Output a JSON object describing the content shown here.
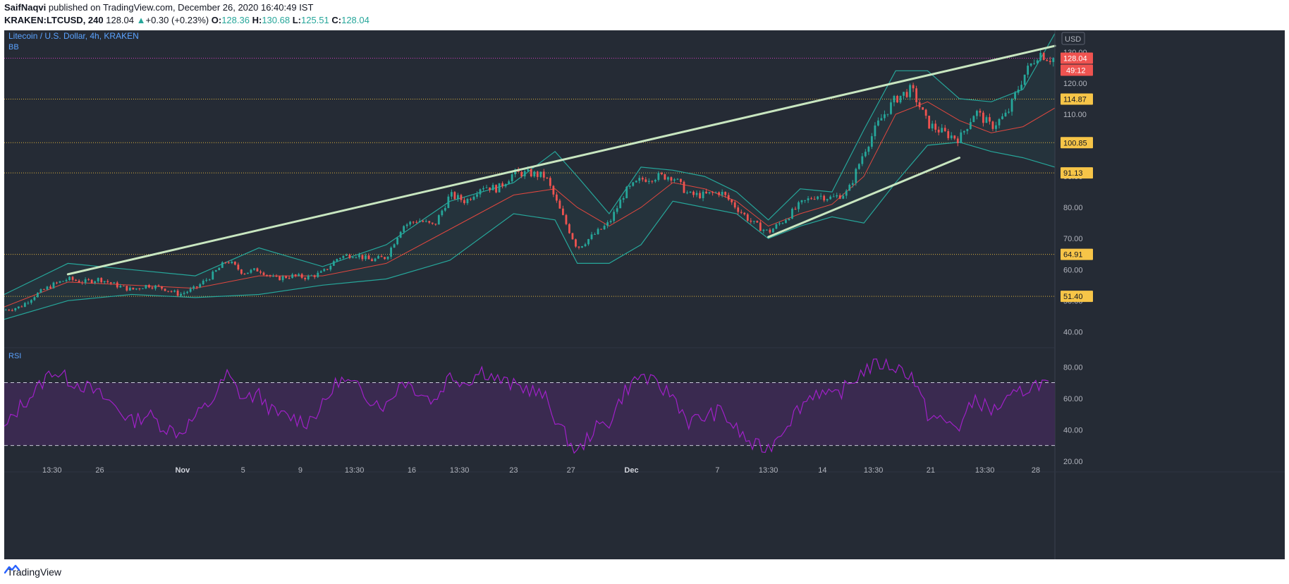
{
  "header": {
    "author": "SaifNaqvi",
    "published_text": " published on TradingView.com, December 26, 2020 16:40:49 IST",
    "symbol": "KRAKEN:LTCUSD, 240",
    "last": "128.04",
    "change_arrow": "▲",
    "change": "+0.30 (+0.23%)",
    "o_label": "O:",
    "o_value": "128.36",
    "h_label": "H:",
    "h_value": "130.68",
    "l_label": "L:",
    "l_value": "125.51",
    "c_label": "C:",
    "c_value": "128.04"
  },
  "pane": {
    "title": "Litecoin / U.S. Dollar, 4h, KRAKEN",
    "indicator": "BB",
    "currency": "USD",
    "rsi_label": "RSI",
    "countdown": "49:12"
  },
  "footer": {
    "brand": "TradingView",
    "brand_icon": "tradingview-logo-icon"
  },
  "colors": {
    "background": "#252b35",
    "up": "#26a69a",
    "down": "#ef5350",
    "bb_band": "#26a69a",
    "bb_basis": "#e0473f",
    "trendline": "#c8e6c0",
    "rsi_line": "#a020c8",
    "rsi_band_fill": "#3e2a55",
    "level_line": "#f0c040",
    "price_tag": "#ef5350",
    "level_tag": "#f7c548"
  },
  "chart_data": [
    {
      "type": "candlestick",
      "title": "Litecoin / U.S. Dollar, 4h, KRAKEN",
      "indicators": [
        "BB"
      ],
      "y_ticks": [
        "40.00",
        "50.00",
        "60.00",
        "70.00",
        "80.00",
        "90.00",
        "100.00",
        "110.00",
        "120.00",
        "130.00"
      ],
      "ylim": [
        36,
        137
      ],
      "x_ticks": [
        "13:30",
        "26",
        "Nov",
        "5",
        "9",
        "13:30",
        "16",
        "13:30",
        "23",
        "27",
        "Dec",
        "7",
        "13:30",
        "14",
        "13:30",
        "21",
        "13:30",
        "28"
      ],
      "horizontal_levels": [
        {
          "value": 128.04,
          "label": "128.04",
          "style": "price"
        },
        {
          "value": 114.87,
          "label": "114.87"
        },
        {
          "value": 100.85,
          "label": "100.85"
        },
        {
          "value": 91.13,
          "label": "91.13"
        },
        {
          "value": 64.91,
          "label": "64.91"
        },
        {
          "value": 51.4,
          "label": "51.40"
        }
      ],
      "trendlines": [
        {
          "from": [
            20,
            58.5
          ],
          "to": [
            330,
            132
          ]
        },
        {
          "from": [
            240,
            70.5
          ],
          "to": [
            300,
            96
          ]
        }
      ],
      "close_path": [
        [
          0,
          47
        ],
        [
          5,
          48
        ],
        [
          10,
          52
        ],
        [
          15,
          55
        ],
        [
          20,
          57
        ],
        [
          25,
          56
        ],
        [
          30,
          57
        ],
        [
          35,
          55
        ],
        [
          40,
          53.5
        ],
        [
          45,
          55
        ],
        [
          50,
          54
        ],
        [
          55,
          52
        ],
        [
          60,
          54
        ],
        [
          65,
          58
        ],
        [
          70,
          63
        ],
        [
          75,
          59
        ],
        [
          80,
          60
        ],
        [
          85,
          57
        ],
        [
          90,
          58
        ],
        [
          95,
          57.5
        ],
        [
          100,
          59
        ],
        [
          105,
          64
        ],
        [
          110,
          65
        ],
        [
          115,
          63
        ],
        [
          120,
          64
        ],
        [
          125,
          74
        ],
        [
          130,
          76
        ],
        [
          135,
          74
        ],
        [
          140,
          84
        ],
        [
          145,
          82
        ],
        [
          150,
          87
        ],
        [
          155,
          86
        ],
        [
          160,
          91
        ],
        [
          165,
          91
        ],
        [
          170,
          90
        ],
        [
          175,
          78
        ],
        [
          180,
          67
        ],
        [
          185,
          71
        ],
        [
          190,
          75
        ],
        [
          195,
          85
        ],
        [
          200,
          89
        ],
        [
          205,
          90
        ],
        [
          210,
          90
        ],
        [
          215,
          84
        ],
        [
          220,
          84
        ],
        [
          225,
          85
        ],
        [
          230,
          80
        ],
        [
          235,
          75
        ],
        [
          240,
          72
        ],
        [
          245,
          76
        ],
        [
          250,
          81
        ],
        [
          255,
          84
        ],
        [
          260,
          83
        ],
        [
          265,
          85
        ],
        [
          270,
          98
        ],
        [
          275,
          108
        ],
        [
          280,
          115
        ],
        [
          285,
          118
        ],
        [
          290,
          107
        ],
        [
          295,
          104
        ],
        [
          300,
          102
        ],
        [
          305,
          111
        ],
        [
          310,
          106
        ],
        [
          315,
          110
        ],
        [
          320,
          122
        ],
        [
          325,
          130
        ],
        [
          328,
          128
        ]
      ],
      "bb_upper": [
        [
          0,
          52
        ],
        [
          20,
          62
        ],
        [
          40,
          60
        ],
        [
          60,
          58
        ],
        [
          80,
          67
        ],
        [
          100,
          61
        ],
        [
          120,
          68
        ],
        [
          140,
          82
        ],
        [
          160,
          88
        ],
        [
          173,
          98
        ],
        [
          180,
          90
        ],
        [
          190,
          78
        ],
        [
          200,
          93
        ],
        [
          210,
          92
        ],
        [
          220,
          90
        ],
        [
          230,
          85
        ],
        [
          240,
          76
        ],
        [
          250,
          86
        ],
        [
          260,
          85
        ],
        [
          270,
          105
        ],
        [
          280,
          124
        ],
        [
          290,
          124
        ],
        [
          300,
          115
        ],
        [
          310,
          114
        ],
        [
          320,
          118
        ],
        [
          330,
          136
        ]
      ],
      "bb_basis": [
        [
          0,
          48
        ],
        [
          20,
          56
        ],
        [
          40,
          55
        ],
        [
          60,
          54
        ],
        [
          80,
          58
        ],
        [
          100,
          58
        ],
        [
          120,
          62
        ],
        [
          140,
          73
        ],
        [
          160,
          84
        ],
        [
          173,
          86
        ],
        [
          180,
          80
        ],
        [
          190,
          74
        ],
        [
          200,
          80
        ],
        [
          210,
          88
        ],
        [
          220,
          86
        ],
        [
          230,
          82
        ],
        [
          240,
          74
        ],
        [
          250,
          78
        ],
        [
          260,
          81
        ],
        [
          270,
          90
        ],
        [
          280,
          110
        ],
        [
          290,
          114
        ],
        [
          300,
          108
        ],
        [
          310,
          104
        ],
        [
          320,
          106
        ],
        [
          330,
          112
        ]
      ],
      "bb_lower": [
        [
          0,
          44
        ],
        [
          20,
          50
        ],
        [
          40,
          52
        ],
        [
          60,
          51
        ],
        [
          80,
          52
        ],
        [
          100,
          55
        ],
        [
          120,
          57
        ],
        [
          140,
          63
        ],
        [
          160,
          78
        ],
        [
          173,
          76
        ],
        [
          180,
          62
        ],
        [
          190,
          62
        ],
        [
          200,
          68
        ],
        [
          210,
          82
        ],
        [
          220,
          80
        ],
        [
          230,
          78
        ],
        [
          240,
          70
        ],
        [
          250,
          74
        ],
        [
          260,
          77
        ],
        [
          270,
          75
        ],
        [
          280,
          88
        ],
        [
          290,
          100
        ],
        [
          300,
          101
        ],
        [
          310,
          98
        ],
        [
          320,
          96
        ],
        [
          330,
          93
        ]
      ]
    },
    {
      "type": "line",
      "title": "RSI",
      "y_ticks": [
        "20.00",
        "40.00",
        "60.00",
        "80.00"
      ],
      "ylim": [
        15,
        90
      ],
      "band": [
        30,
        70
      ],
      "series": [
        {
          "values": [
            [
              0,
              40
            ],
            [
              5,
              55
            ],
            [
              10,
              65
            ],
            [
              15,
              78
            ],
            [
              20,
              72
            ],
            [
              25,
              68
            ],
            [
              30,
              62
            ],
            [
              35,
              55
            ],
            [
              40,
              45
            ],
            [
              45,
              50
            ],
            [
              50,
              42
            ],
            [
              55,
              38
            ],
            [
              60,
              48
            ],
            [
              65,
              58
            ],
            [
              70,
              75
            ],
            [
              75,
              60
            ],
            [
              80,
              62
            ],
            [
              85,
              50
            ],
            [
              90,
              48
            ],
            [
              95,
              45
            ],
            [
              100,
              55
            ],
            [
              105,
              72
            ],
            [
              110,
              68
            ],
            [
              115,
              60
            ],
            [
              120,
              55
            ],
            [
              125,
              72
            ],
            [
              130,
              65
            ],
            [
              135,
              58
            ],
            [
              140,
              75
            ],
            [
              145,
              70
            ],
            [
              150,
              78
            ],
            [
              155,
              72
            ],
            [
              160,
              68
            ],
            [
              165,
              66
            ],
            [
              170,
              60
            ],
            [
              175,
              40
            ],
            [
              180,
              25
            ],
            [
              185,
              40
            ],
            [
              190,
              45
            ],
            [
              195,
              65
            ],
            [
              200,
              75
            ],
            [
              205,
              68
            ],
            [
              210,
              62
            ],
            [
              215,
              45
            ],
            [
              220,
              48
            ],
            [
              225,
              52
            ],
            [
              230,
              40
            ],
            [
              235,
              30
            ],
            [
              240,
              28
            ],
            [
              245,
              42
            ],
            [
              250,
              55
            ],
            [
              255,
              65
            ],
            [
              260,
              60
            ],
            [
              265,
              68
            ],
            [
              270,
              78
            ],
            [
              275,
              82
            ],
            [
              280,
              80
            ],
            [
              285,
              75
            ],
            [
              290,
              50
            ],
            [
              295,
              45
            ],
            [
              300,
              42
            ],
            [
              305,
              60
            ],
            [
              310,
              52
            ],
            [
              315,
              58
            ],
            [
              320,
              65
            ],
            [
              325,
              70
            ],
            [
              328,
              68
            ]
          ]
        }
      ]
    }
  ]
}
